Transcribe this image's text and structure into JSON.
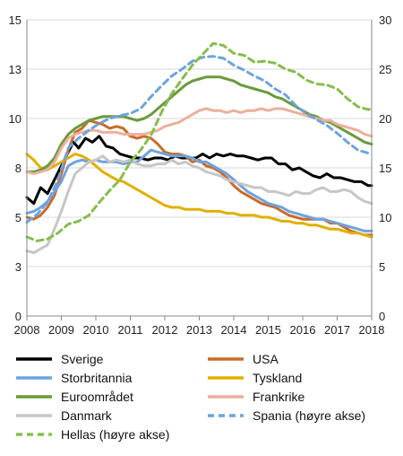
{
  "chart_data": {
    "type": "line",
    "title": "",
    "xlabel": "",
    "ylabel": "",
    "grid": true,
    "legend_position": "bottom",
    "x_ticks": [
      "2008",
      "2009",
      "2010",
      "2011",
      "2012",
      "2013",
      "2014",
      "2015",
      "2016",
      "2017",
      "2018"
    ],
    "xlim": [
      2008,
      2018
    ],
    "y_left_ticks": [
      "0",
      "3",
      "5",
      "8",
      "10",
      "13",
      "15"
    ],
    "y_left_tick_values": [
      0,
      2.5,
      5,
      7.5,
      10,
      12.5,
      15
    ],
    "ylim_left": [
      0,
      15
    ],
    "y_right_ticks": [
      "0",
      "5",
      "10",
      "15",
      "20",
      "25",
      "30"
    ],
    "y_right_tick_values": [
      0,
      5,
      10,
      15,
      20,
      25,
      30
    ],
    "ylim_right": [
      0,
      30
    ],
    "series": [
      {
        "name": "Sverige",
        "color": "#000000",
        "dash": false,
        "axis": "left",
        "x": [
          2008.0,
          2008.2,
          2008.4,
          2008.6,
          2008.8,
          2009.0,
          2009.2,
          2009.35,
          2009.5,
          2009.7,
          2009.9,
          2010.1,
          2010.3,
          2010.5,
          2010.7,
          2010.9,
          2011.1,
          2011.3,
          2011.5,
          2011.7,
          2011.9,
          2012.1,
          2012.3,
          2012.5,
          2012.7,
          2012.9,
          2013.1,
          2013.3,
          2013.5,
          2013.7,
          2013.9,
          2014.1,
          2014.3,
          2014.5,
          2014.7,
          2014.9,
          2015.1,
          2015.3,
          2015.5,
          2015.7,
          2015.9,
          2016.1,
          2016.3,
          2016.5,
          2016.7,
          2016.9,
          2017.1,
          2017.3,
          2017.5,
          2017.7,
          2017.9,
          2018.0
        ],
        "y": [
          6.0,
          5.7,
          6.5,
          6.2,
          6.9,
          7.6,
          8.3,
          8.8,
          8.5,
          9.0,
          8.8,
          9.1,
          8.6,
          8.5,
          8.2,
          8.1,
          8.0,
          8.0,
          7.9,
          8.0,
          8.0,
          7.9,
          8.1,
          8.0,
          8.0,
          8.0,
          8.2,
          8.0,
          8.2,
          8.1,
          8.2,
          8.1,
          8.1,
          8.0,
          7.9,
          8.0,
          8.0,
          7.7,
          7.7,
          7.4,
          7.5,
          7.3,
          7.1,
          7.0,
          7.2,
          7.0,
          7.0,
          6.9,
          6.8,
          6.8,
          6.6,
          6.6
        ]
      },
      {
        "name": "USA",
        "color": "#c96b2a",
        "dash": false,
        "axis": "left",
        "x": [
          2008.0,
          2008.2,
          2008.4,
          2008.6,
          2008.8,
          2009.0,
          2009.2,
          2009.4,
          2009.6,
          2009.8,
          2010.0,
          2010.2,
          2010.4,
          2010.6,
          2010.8,
          2011.0,
          2011.2,
          2011.4,
          2011.6,
          2011.8,
          2012.0,
          2012.2,
          2012.4,
          2012.6,
          2012.8,
          2013.0,
          2013.2,
          2013.4,
          2013.6,
          2013.8,
          2014.0,
          2014.2,
          2014.4,
          2014.6,
          2014.8,
          2015.0,
          2015.2,
          2015.4,
          2015.6,
          2015.8,
          2016.0,
          2016.2,
          2016.4,
          2016.6,
          2016.8,
          2017.0,
          2017.2,
          2017.4,
          2017.6,
          2017.8,
          2018.0
        ],
        "y": [
          5.0,
          4.9,
          5.1,
          5.5,
          6.1,
          7.2,
          8.4,
          9.3,
          9.5,
          9.9,
          9.8,
          9.7,
          9.5,
          9.6,
          9.5,
          9.1,
          9.0,
          9.1,
          9.0,
          8.7,
          8.3,
          8.2,
          8.2,
          8.1,
          7.8,
          7.9,
          7.6,
          7.5,
          7.3,
          7.0,
          6.6,
          6.3,
          6.1,
          5.9,
          5.7,
          5.6,
          5.5,
          5.3,
          5.1,
          5.0,
          4.9,
          4.9,
          4.9,
          4.9,
          4.7,
          4.7,
          4.5,
          4.3,
          4.2,
          4.1,
          4.1
        ]
      },
      {
        "name": "Storbritannia",
        "color": "#6fa3de",
        "dash": false,
        "axis": "left",
        "x": [
          2008.0,
          2008.2,
          2008.4,
          2008.6,
          2008.8,
          2009.0,
          2009.2,
          2009.4,
          2009.6,
          2009.8,
          2010.0,
          2010.2,
          2010.4,
          2010.6,
          2010.8,
          2011.0,
          2011.2,
          2011.4,
          2011.6,
          2011.8,
          2012.0,
          2012.2,
          2012.4,
          2012.6,
          2012.8,
          2013.0,
          2013.2,
          2013.4,
          2013.6,
          2013.8,
          2014.0,
          2014.2,
          2014.4,
          2014.6,
          2014.8,
          2015.0,
          2015.2,
          2015.4,
          2015.6,
          2015.8,
          2016.0,
          2016.2,
          2016.4,
          2016.6,
          2016.8,
          2017.0,
          2017.2,
          2017.4,
          2017.6,
          2017.8,
          2018.0
        ],
        "y": [
          5.2,
          5.3,
          5.5,
          5.8,
          6.3,
          6.8,
          7.6,
          7.8,
          7.9,
          7.8,
          7.9,
          7.8,
          7.8,
          7.8,
          7.7,
          7.8,
          7.8,
          8.1,
          8.4,
          8.3,
          8.2,
          8.1,
          8.1,
          8.1,
          8.0,
          7.8,
          7.8,
          7.6,
          7.4,
          7.2,
          6.9,
          6.6,
          6.3,
          6.1,
          5.9,
          5.7,
          5.6,
          5.5,
          5.3,
          5.2,
          5.1,
          5.0,
          4.9,
          4.9,
          4.8,
          4.7,
          4.6,
          4.5,
          4.4,
          4.3,
          4.3
        ]
      },
      {
        "name": "Tyskland",
        "color": "#e0b000",
        "dash": false,
        "axis": "left",
        "x": [
          2008.0,
          2008.2,
          2008.4,
          2008.6,
          2008.8,
          2009.0,
          2009.2,
          2009.4,
          2009.6,
          2009.8,
          2010.0,
          2010.2,
          2010.4,
          2010.6,
          2010.8,
          2011.0,
          2011.2,
          2011.4,
          2011.6,
          2011.8,
          2012.0,
          2012.2,
          2012.4,
          2012.6,
          2012.8,
          2013.0,
          2013.2,
          2013.4,
          2013.6,
          2013.8,
          2014.0,
          2014.2,
          2014.4,
          2014.6,
          2014.8,
          2015.0,
          2015.2,
          2015.4,
          2015.6,
          2015.8,
          2016.0,
          2016.2,
          2016.4,
          2016.6,
          2016.8,
          2017.0,
          2017.2,
          2017.4,
          2017.6,
          2017.8,
          2018.0
        ],
        "y": [
          8.2,
          7.9,
          7.5,
          7.4,
          7.6,
          7.8,
          8.0,
          8.2,
          8.1,
          7.9,
          7.6,
          7.3,
          7.1,
          6.9,
          6.8,
          6.6,
          6.4,
          6.2,
          6.0,
          5.8,
          5.6,
          5.5,
          5.5,
          5.4,
          5.4,
          5.4,
          5.3,
          5.3,
          5.3,
          5.2,
          5.2,
          5.1,
          5.1,
          5.1,
          5.0,
          5.0,
          4.9,
          4.8,
          4.8,
          4.7,
          4.7,
          4.6,
          4.6,
          4.5,
          4.4,
          4.4,
          4.3,
          4.2,
          4.2,
          4.1,
          4.0
        ]
      },
      {
        "name": "Euroområdet",
        "color": "#6a9a3c",
        "dash": false,
        "axis": "left",
        "x": [
          2008.0,
          2008.2,
          2008.4,
          2008.6,
          2008.8,
          2009.0,
          2009.2,
          2009.4,
          2009.6,
          2009.8,
          2010.0,
          2010.2,
          2010.4,
          2010.6,
          2010.8,
          2011.0,
          2011.2,
          2011.4,
          2011.6,
          2011.8,
          2012.0,
          2012.2,
          2012.4,
          2012.6,
          2012.8,
          2013.0,
          2013.2,
          2013.4,
          2013.6,
          2013.8,
          2014.0,
          2014.2,
          2014.4,
          2014.6,
          2014.8,
          2015.0,
          2015.2,
          2015.4,
          2015.6,
          2015.8,
          2016.0,
          2016.2,
          2016.4,
          2016.6,
          2016.8,
          2017.0,
          2017.2,
          2017.4,
          2017.6,
          2017.8,
          2018.0
        ],
        "y": [
          7.3,
          7.3,
          7.4,
          7.6,
          8.0,
          8.7,
          9.2,
          9.5,
          9.7,
          9.9,
          10.0,
          10.1,
          10.1,
          10.1,
          10.1,
          10.0,
          9.9,
          10.0,
          10.2,
          10.5,
          10.8,
          11.1,
          11.4,
          11.7,
          11.9,
          12.0,
          12.1,
          12.1,
          12.1,
          12.0,
          11.9,
          11.7,
          11.6,
          11.5,
          11.4,
          11.3,
          11.1,
          11.0,
          10.8,
          10.6,
          10.4,
          10.2,
          10.1,
          9.9,
          9.8,
          9.6,
          9.4,
          9.2,
          9.0,
          8.8,
          8.7
        ]
      },
      {
        "name": "Frankrike",
        "color": "#ebb09b",
        "dash": false,
        "axis": "left",
        "x": [
          2008.0,
          2008.2,
          2008.4,
          2008.6,
          2008.8,
          2009.0,
          2009.2,
          2009.4,
          2009.6,
          2009.8,
          2010.0,
          2010.2,
          2010.4,
          2010.6,
          2010.8,
          2011.0,
          2011.2,
          2011.4,
          2011.6,
          2011.8,
          2012.0,
          2012.2,
          2012.4,
          2012.6,
          2012.8,
          2013.0,
          2013.2,
          2013.4,
          2013.6,
          2013.8,
          2014.0,
          2014.2,
          2014.4,
          2014.6,
          2014.8,
          2015.0,
          2015.2,
          2015.4,
          2015.6,
          2015.8,
          2016.0,
          2016.2,
          2016.4,
          2016.6,
          2016.8,
          2017.0,
          2017.2,
          2017.4,
          2017.6,
          2017.8,
          2018.0
        ],
        "y": [
          7.3,
          7.2,
          7.3,
          7.4,
          7.8,
          8.5,
          9.0,
          9.2,
          9.3,
          9.4,
          9.4,
          9.3,
          9.3,
          9.3,
          9.2,
          9.2,
          9.2,
          9.2,
          9.3,
          9.4,
          9.6,
          9.7,
          9.8,
          10.0,
          10.2,
          10.4,
          10.5,
          10.4,
          10.4,
          10.3,
          10.4,
          10.3,
          10.4,
          10.4,
          10.5,
          10.4,
          10.5,
          10.5,
          10.4,
          10.3,
          10.2,
          10.1,
          10.0,
          9.9,
          9.9,
          9.7,
          9.6,
          9.5,
          9.4,
          9.2,
          9.1
        ]
      },
      {
        "name": "Danmark",
        "color": "#c6c6c6",
        "dash": false,
        "axis": "left",
        "x": [
          2008.0,
          2008.2,
          2008.4,
          2008.6,
          2008.8,
          2009.0,
          2009.2,
          2009.4,
          2009.6,
          2009.8,
          2010.0,
          2010.2,
          2010.4,
          2010.6,
          2010.8,
          2011.0,
          2011.2,
          2011.4,
          2011.6,
          2011.8,
          2012.0,
          2012.2,
          2012.4,
          2012.6,
          2012.8,
          2013.0,
          2013.2,
          2013.4,
          2013.6,
          2013.8,
          2014.0,
          2014.2,
          2014.4,
          2014.6,
          2014.8,
          2015.0,
          2015.2,
          2015.4,
          2015.6,
          2015.8,
          2016.0,
          2016.2,
          2016.4,
          2016.6,
          2016.8,
          2017.0,
          2017.2,
          2017.4,
          2017.6,
          2017.8,
          2018.0
        ],
        "y": [
          3.3,
          3.2,
          3.4,
          3.6,
          4.4,
          5.3,
          6.3,
          7.2,
          7.5,
          7.8,
          7.9,
          8.1,
          7.8,
          7.9,
          7.8,
          7.9,
          7.7,
          7.6,
          7.6,
          7.7,
          7.7,
          7.9,
          7.7,
          7.8,
          7.6,
          7.5,
          7.3,
          7.2,
          7.1,
          6.9,
          6.8,
          6.7,
          6.6,
          6.5,
          6.5,
          6.3,
          6.3,
          6.2,
          6.1,
          6.3,
          6.2,
          6.2,
          6.4,
          6.5,
          6.3,
          6.3,
          6.4,
          6.3,
          6.0,
          5.8,
          5.7
        ]
      },
      {
        "name": "Spania (høyre akse)",
        "color": "#6fa3de",
        "dash": true,
        "axis": "right",
        "x": [
          2008.0,
          2008.3,
          2008.6,
          2008.9,
          2009.2,
          2009.5,
          2009.8,
          2010.1,
          2010.4,
          2010.7,
          2011.0,
          2011.3,
          2011.6,
          2011.9,
          2012.2,
          2012.5,
          2012.8,
          2013.1,
          2013.4,
          2013.7,
          2014.0,
          2014.3,
          2014.6,
          2014.9,
          2015.2,
          2015.5,
          2015.8,
          2016.1,
          2016.4,
          2016.7,
          2017.0,
          2017.3,
          2017.6,
          2017.9,
          2018.0
        ],
        "y": [
          9.5,
          10.3,
          11.5,
          13.8,
          17.0,
          18.0,
          18.8,
          19.5,
          20.0,
          20.3,
          20.5,
          21.0,
          22.2,
          23.3,
          24.3,
          25.0,
          25.8,
          26.2,
          26.3,
          26.1,
          25.4,
          24.9,
          24.3,
          23.8,
          23.0,
          22.4,
          21.3,
          20.5,
          19.9,
          19.3,
          18.5,
          17.6,
          16.8,
          16.5,
          16.4
        ]
      },
      {
        "name": "Hellas (høyre akse)",
        "color": "#86bd4e",
        "dash": true,
        "axis": "right",
        "x": [
          2008.0,
          2008.3,
          2008.6,
          2008.9,
          2009.2,
          2009.5,
          2009.8,
          2010.1,
          2010.4,
          2010.7,
          2011.0,
          2011.3,
          2011.6,
          2011.9,
          2012.2,
          2012.5,
          2012.8,
          2013.1,
          2013.4,
          2013.7,
          2014.0,
          2014.3,
          2014.6,
          2014.9,
          2015.2,
          2015.5,
          2015.8,
          2016.1,
          2016.4,
          2016.7,
          2017.0,
          2017.3,
          2017.6,
          2017.9,
          2018.0
        ],
        "y": [
          8.0,
          7.6,
          7.8,
          8.4,
          9.3,
          9.6,
          10.2,
          11.5,
          12.7,
          13.8,
          15.6,
          16.8,
          18.3,
          20.6,
          22.5,
          24.0,
          25.4,
          26.5,
          27.6,
          27.4,
          26.6,
          26.4,
          25.7,
          25.8,
          25.6,
          25.0,
          24.7,
          23.9,
          23.5,
          23.4,
          23.0,
          22.0,
          21.2,
          20.9,
          21.0
        ]
      }
    ]
  }
}
